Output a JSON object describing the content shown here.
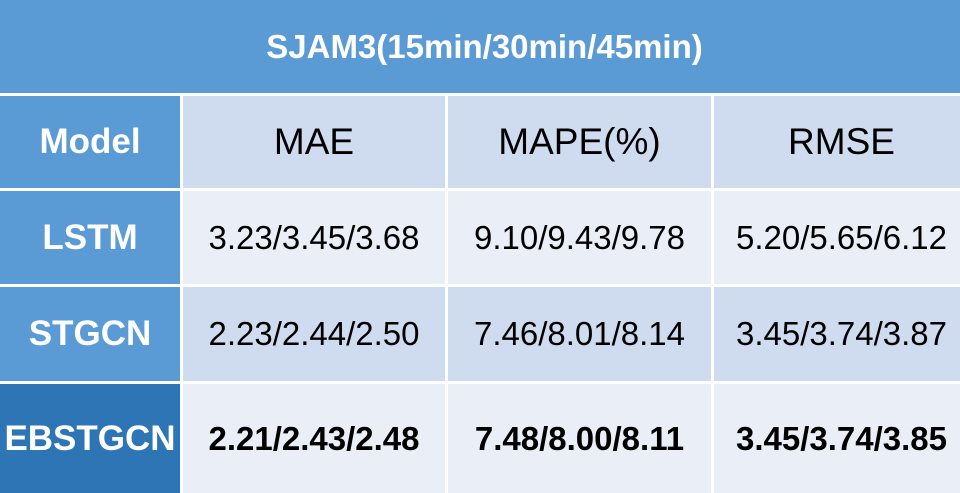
{
  "title": "SJAM3(15min/30min/45min)",
  "columns": [
    "Model",
    "MAE",
    "MAPE(%)",
    "RMSE"
  ],
  "rows": [
    {
      "model": "LSTM",
      "mae": "3.23/3.45/3.68",
      "mape": "9.10/9.43/9.78",
      "rmse": "5.20/5.65/6.12"
    },
    {
      "model": "STGCN",
      "mae": "2.23/2.44/2.50",
      "mape": "7.46/8.01/8.14",
      "rmse": "3.45/3.74/3.87"
    },
    {
      "model": "EBSTGCN",
      "mae": "2.21/2.43/2.48",
      "mape": "7.48/8.00/8.11",
      "rmse": "3.45/3.74/3.85"
    }
  ],
  "colors": {
    "header_blue": "#5b9bd5",
    "highlight_blue": "#2e75b6",
    "light_row": "#e9eef7",
    "mid_row": "#cfdbee"
  }
}
